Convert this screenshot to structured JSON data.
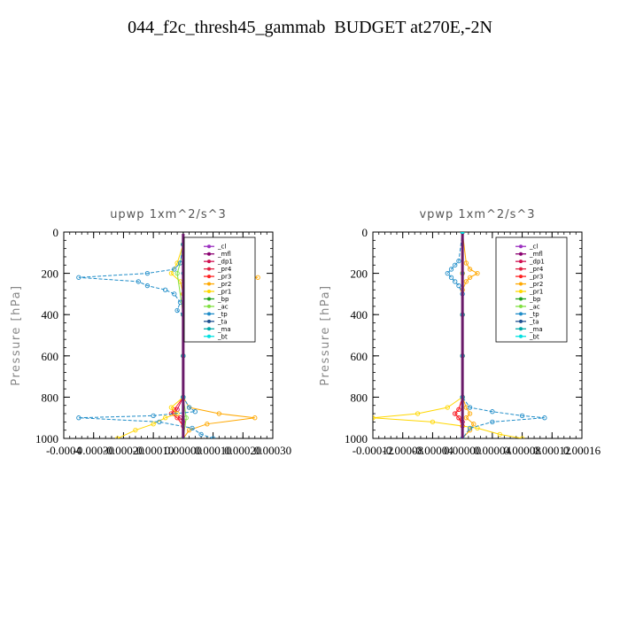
{
  "figure": {
    "title": "044_f2c_thresh45_gammab  BUDGET at270E,-2N"
  },
  "chart_data": [
    {
      "type": "line",
      "title": "upwp   1xm^2/s^3",
      "ylabel": "Pressure [hPa]",
      "xlabel": "",
      "xlim": [
        -0.0004,
        0.0003
      ],
      "ylim": [
        1000,
        0
      ],
      "x_tick_labels": [
        "-0.0004",
        "-0.00030",
        "-0.00020",
        "-0.00010",
        "0.00000",
        "0.00010",
        "0.00020",
        "0.00030"
      ],
      "x_tick_values": [
        -0.0004,
        -0.0003,
        -0.0002,
        -0.0001,
        0,
        0.0001,
        0.0002,
        0.0003
      ],
      "y_tick_values": [
        0,
        200,
        400,
        600,
        800,
        1000
      ],
      "y_tick_labels": [
        "0",
        "200",
        "400",
        "600",
        "800",
        "1000"
      ],
      "legend_placement": "top-right",
      "series": [
        {
          "name": "_cl",
          "color": "#9b30c0",
          "pressure": [
            60,
            200,
            400,
            600,
            800,
            1000
          ],
          "values": [
            0,
            0,
            0,
            0,
            0,
            0
          ]
        },
        {
          "name": "_mfl",
          "color": "#8b0070",
          "pressure": [
            60,
            200,
            400,
            600,
            800,
            1000
          ],
          "values": [
            0,
            0,
            0,
            0,
            0,
            0
          ]
        },
        {
          "name": "_dp1",
          "color": "#d01050",
          "pressure": [
            60,
            200,
            400,
            600,
            800,
            860,
            880,
            900,
            920,
            1000
          ],
          "values": [
            0,
            5e-06,
            0,
            0,
            0,
            -2e-05,
            -3e-05,
            -1e-05,
            0,
            0
          ]
        },
        {
          "name": "_pr4",
          "color": "#e02040",
          "pressure": [
            60,
            200,
            400,
            600,
            800,
            1000
          ],
          "values": [
            0,
            0,
            0,
            0,
            0,
            0
          ]
        },
        {
          "name": "_pr3",
          "color": "#ff2020",
          "pressure": [
            60,
            160,
            200,
            220,
            240,
            260,
            300,
            400,
            600,
            800,
            860,
            880,
            900,
            940,
            1000
          ],
          "values": [
            0,
            1e-05,
            3e-05,
            5e-05,
            3e-05,
            1e-05,
            0,
            0,
            0,
            0,
            -3e-05,
            -4e-05,
            -2e-05,
            0,
            0
          ]
        },
        {
          "name": "_pr2",
          "color": "#ffa800",
          "pressure": [
            60,
            120,
            170,
            200,
            220,
            240,
            260,
            300,
            340,
            400,
            600,
            800,
            850,
            880,
            900,
            930,
            960,
            1000
          ],
          "values": [
            0,
            1e-05,
            4e-05,
            9e-05,
            0.00025,
            8e-05,
            4e-05,
            2e-05,
            1e-05,
            0,
            0,
            0,
            2e-05,
            0.00012,
            0.00024,
            8e-05,
            2e-05,
            0
          ]
        },
        {
          "name": "_pr1",
          "color": "#ffd700",
          "pressure": [
            60,
            150,
            200,
            240,
            300,
            400,
            600,
            800,
            850,
            880,
            900,
            930,
            960,
            1000
          ],
          "values": [
            0,
            -2e-05,
            -4e-05,
            -1e-05,
            0,
            0,
            0,
            0,
            -4e-05,
            -2e-05,
            -6e-05,
            -0.0001,
            -0.00016,
            -0.00022
          ]
        },
        {
          "name": "_bp",
          "color": "#20a020",
          "pressure": [
            60,
            200,
            400,
            600,
            800,
            1000
          ],
          "values": [
            0,
            0,
            0,
            0,
            0,
            0
          ]
        },
        {
          "name": "_ac",
          "color": "#80e040",
          "pressure": [
            60,
            150,
            200,
            400,
            600,
            800,
            900,
            1000
          ],
          "values": [
            0,
            -1e-05,
            -2e-05,
            0,
            0,
            0,
            1e-05,
            0
          ]
        },
        {
          "name": "_tp",
          "color": "#1e8cc8",
          "pressure": [
            60,
            150,
            180,
            200,
            220,
            240,
            260,
            280,
            300,
            340,
            380,
            400,
            600,
            800,
            850,
            870,
            890,
            900,
            920,
            950,
            980,
            1000
          ],
          "values": [
            0,
            -1e-05,
            -3e-05,
            -0.00012,
            -0.00035,
            -0.00015,
            -0.00012,
            -6e-05,
            -3e-05,
            -1e-05,
            -2e-05,
            0,
            0,
            0,
            2e-05,
            4e-05,
            -0.0001,
            -0.00035,
            -8e-05,
            3e-05,
            6e-05,
            0.0001
          ]
        },
        {
          "name": "_ta",
          "color": "#1e5090",
          "pressure": [
            60,
            200,
            400,
            600,
            800,
            1000
          ],
          "values": [
            0,
            0,
            0,
            0,
            0,
            0
          ]
        },
        {
          "name": "_ma",
          "color": "#00a8a8",
          "pressure": [
            60,
            200,
            400,
            600,
            800,
            1000
          ],
          "values": [
            0,
            0,
            0,
            0,
            0,
            0
          ]
        },
        {
          "name": "_bt",
          "color": "#00e0e0",
          "pressure": [
            60,
            200,
            400,
            600,
            800,
            1000
          ],
          "values": [
            0,
            0,
            0,
            0,
            0,
            0
          ]
        }
      ]
    },
    {
      "type": "line",
      "title": "vpwp   1xm^2/s^3",
      "ylabel": "Pressure [hPa]",
      "xlabel": "",
      "xlim": [
        -0.00012,
        0.00016
      ],
      "ylim": [
        1000,
        0
      ],
      "x_tick_labels": [
        "-0.00012",
        "-0.00008",
        "-0.00004",
        "0.00000",
        "0.00004",
        "0.00008",
        "0.00012",
        "0.00016"
      ],
      "x_tick_values": [
        -0.00012,
        -8e-05,
        -4e-05,
        0,
        4e-05,
        8e-05,
        0.00012,
        0.00016
      ],
      "y_tick_values": [
        0,
        200,
        400,
        600,
        800,
        1000
      ],
      "y_tick_labels": [
        "0",
        "200",
        "400",
        "600",
        "800",
        "1000"
      ],
      "legend_placement": "top-right",
      "series": [
        {
          "name": "_cl",
          "color": "#9b30c0",
          "pressure": [
            0,
            200,
            400,
            600,
            800,
            1000
          ],
          "values": [
            0,
            0,
            0,
            0,
            0,
            0
          ]
        },
        {
          "name": "_mfl",
          "color": "#8b0070",
          "pressure": [
            0,
            200,
            400,
            600,
            800,
            1000
          ],
          "values": [
            0,
            0,
            0,
            0,
            0,
            0
          ]
        },
        {
          "name": "_dp1",
          "color": "#d01050",
          "pressure": [
            0,
            200,
            400,
            600,
            800,
            860,
            880,
            900,
            920,
            1000
          ],
          "values": [
            0,
            0,
            0,
            0,
            0,
            -5e-06,
            -1e-05,
            -5e-06,
            0,
            0
          ]
        },
        {
          "name": "_pr4",
          "color": "#e02040",
          "pressure": [
            0,
            200,
            400,
            600,
            800,
            1000
          ],
          "values": [
            0,
            0,
            0,
            0,
            0,
            0
          ]
        },
        {
          "name": "_pr3",
          "color": "#ff2020",
          "pressure": [
            0,
            200,
            400,
            600,
            800,
            860,
            880,
            900,
            940,
            1000
          ],
          "values": [
            0,
            0,
            0,
            0,
            0,
            -5e-06,
            -1e-05,
            -5e-06,
            0,
            0
          ]
        },
        {
          "name": "_pr2",
          "color": "#ffa800",
          "pressure": [
            0,
            150,
            180,
            200,
            220,
            240,
            280,
            400,
            600,
            800,
            850,
            880,
            900,
            930,
            960,
            1000
          ],
          "values": [
            0,
            5e-06,
            1e-05,
            2e-05,
            1e-05,
            5e-06,
            0,
            0,
            0,
            0,
            5e-06,
            1e-05,
            5e-06,
            1.5e-05,
            1e-05,
            0
          ]
        },
        {
          "name": "_pr1",
          "color": "#ffd700",
          "pressure": [
            0,
            200,
            400,
            600,
            800,
            850,
            880,
            900,
            920,
            950,
            980,
            1000
          ],
          "values": [
            0,
            0,
            0,
            0,
            0,
            -2e-05,
            -6e-05,
            -0.00012,
            -4e-05,
            2e-05,
            5e-05,
            8e-05
          ]
        },
        {
          "name": "_bp",
          "color": "#20a020",
          "pressure": [
            0,
            200,
            400,
            600,
            800,
            1000
          ],
          "values": [
            0,
            0,
            0,
            0,
            0,
            0
          ]
        },
        {
          "name": "_ac",
          "color": "#80e040",
          "pressure": [
            0,
            200,
            400,
            600,
            800,
            1000
          ],
          "values": [
            0,
            0,
            0,
            0,
            0,
            0
          ]
        },
        {
          "name": "_tp",
          "color": "#1e8cc8",
          "pressure": [
            0,
            140,
            160,
            180,
            200,
            220,
            240,
            260,
            300,
            400,
            600,
            800,
            850,
            870,
            890,
            900,
            920,
            950,
            1000
          ],
          "values": [
            0,
            -5e-06,
            -1e-05,
            -1.5e-05,
            -2e-05,
            -1.5e-05,
            -1e-05,
            -5e-06,
            0,
            0,
            0,
            0,
            1e-05,
            4e-05,
            8e-05,
            0.00011,
            4e-05,
            1e-05,
            0
          ]
        },
        {
          "name": "_ta",
          "color": "#1e5090",
          "pressure": [
            0,
            200,
            400,
            600,
            800,
            1000
          ],
          "values": [
            0,
            0,
            0,
            0,
            0,
            0
          ]
        },
        {
          "name": "_ma",
          "color": "#00a8a8",
          "pressure": [
            0,
            200,
            400,
            600,
            800,
            1000
          ],
          "values": [
            0,
            0,
            0,
            0,
            0,
            0
          ]
        },
        {
          "name": "_bt",
          "color": "#00e0e0",
          "pressure": [
            0,
            200,
            400,
            600,
            800,
            1000
          ],
          "values": [
            0,
            0,
            0,
            0,
            0,
            0
          ]
        }
      ]
    }
  ]
}
